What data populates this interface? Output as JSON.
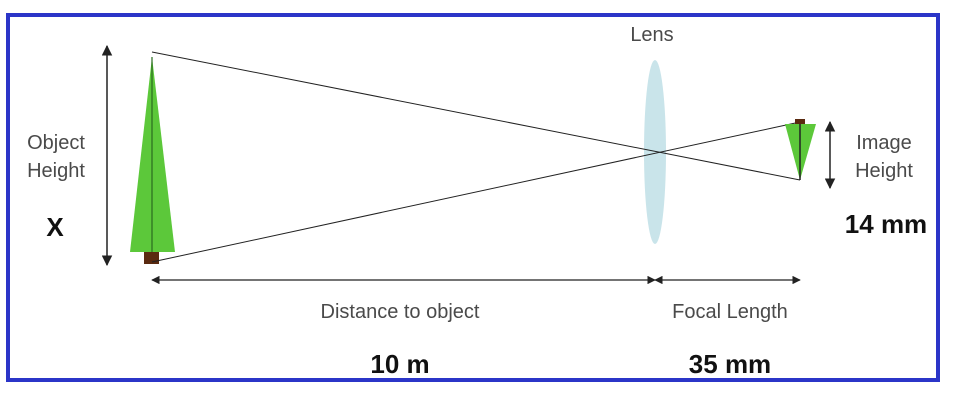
{
  "labels": {
    "lens": "Lens",
    "object_height_line1": "Object",
    "object_height_line2": "Height",
    "object_height_value": "X",
    "image_height_line1": "Image",
    "image_height_line2": "Height",
    "image_height_value": "14 mm",
    "distance_label": "Distance to object",
    "distance_value": "10 m",
    "focal_label": "Focal Length",
    "focal_value": "35 mm"
  },
  "colors": {
    "frame": "#2b35c8",
    "tree_foliage": "#5cc83a",
    "tree_trunk": "#5a2a10",
    "lens": "#c9e4ea",
    "lines": "#222222"
  }
}
